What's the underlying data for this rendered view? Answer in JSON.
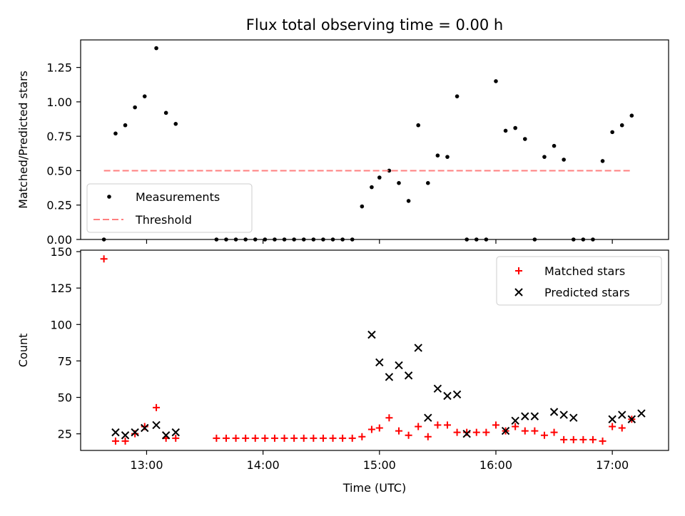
{
  "title": "Flux total observing time = 0.00 h",
  "chart_data": [
    {
      "type": "scatter",
      "ylabel": "Matched/Predicted stars",
      "ylim": [
        0,
        1.45
      ],
      "xlim": [
        "12:26",
        "17:29"
      ],
      "yticks": [
        0.0,
        0.25,
        0.5,
        0.75,
        1.0,
        1.25
      ],
      "ytick_labels": [
        "0.00",
        "0.25",
        "0.50",
        "0.75",
        "1.00",
        "1.25"
      ],
      "legend_position": "lower-left",
      "grid": false,
      "series": [
        {
          "name": "Measurements",
          "color": "#000000",
          "marker": "dot",
          "x": [
            "12:38",
            "12:44",
            "12:49",
            "12:54",
            "12:59",
            "13:05",
            "13:10",
            "13:15",
            "13:36",
            "13:41",
            "13:46",
            "13:51",
            "13:56",
            "14:01",
            "14:06",
            "14:11",
            "14:16",
            "14:21",
            "14:26",
            "14:31",
            "14:36",
            "14:41",
            "14:46",
            "14:51",
            "14:56",
            "15:00",
            "15:05",
            "15:10",
            "15:15",
            "15:20",
            "15:25",
            "15:30",
            "15:35",
            "15:40",
            "15:45",
            "15:50",
            "15:55",
            "16:00",
            "16:05",
            "16:10",
            "16:15",
            "16:20",
            "16:25",
            "16:30",
            "16:35",
            "16:40",
            "16:45",
            "16:50",
            "16:55",
            "17:00",
            "17:05",
            "17:10"
          ],
          "y": [
            0.0,
            0.77,
            0.83,
            0.96,
            1.04,
            1.39,
            0.92,
            0.84,
            0.0,
            0.0,
            0.0,
            0.0,
            0.0,
            0.0,
            0.0,
            0.0,
            0.0,
            0.0,
            0.0,
            0.0,
            0.0,
            0.0,
            0.0,
            0.24,
            0.38,
            0.45,
            0.5,
            0.41,
            0.28,
            0.83,
            0.41,
            0.61,
            0.6,
            1.04,
            0.0,
            0.0,
            0.0,
            1.15,
            0.79,
            0.81,
            0.73,
            0.0,
            0.6,
            0.68,
            0.58,
            0.0,
            0.0,
            0.0,
            0.57,
            0.78,
            0.83,
            0.9
          ]
        },
        {
          "name": "Threshold",
          "color": "#ff7f7f",
          "style": "dashed",
          "x": [
            "12:38",
            "17:10"
          ],
          "y": [
            0.5,
            0.5
          ]
        }
      ]
    },
    {
      "type": "scatter",
      "ylabel": "Count",
      "xlabel": "Time (UTC)",
      "ylim": [
        13.6,
        151
      ],
      "xlim": [
        "12:26",
        "17:29"
      ],
      "yticks": [
        25,
        50,
        75,
        100,
        125,
        150
      ],
      "ytick_labels": [
        "25",
        "50",
        "75",
        "100",
        "125",
        "150"
      ],
      "xticks": [
        "13:00",
        "14:00",
        "15:00",
        "16:00",
        "17:00"
      ],
      "legend_position": "upper-right",
      "grid": false,
      "series": [
        {
          "name": "Matched stars",
          "color": "#ff0000",
          "marker": "plus",
          "x": [
            "12:38",
            "12:44",
            "12:49",
            "12:54",
            "12:59",
            "13:05",
            "13:10",
            "13:15",
            "13:36",
            "13:41",
            "13:46",
            "13:51",
            "13:56",
            "14:01",
            "14:06",
            "14:11",
            "14:16",
            "14:21",
            "14:26",
            "14:31",
            "14:36",
            "14:41",
            "14:46",
            "14:51",
            "14:56",
            "15:00",
            "15:05",
            "15:10",
            "15:15",
            "15:20",
            "15:25",
            "15:30",
            "15:35",
            "15:40",
            "15:45",
            "15:50",
            "15:55",
            "16:00",
            "16:05",
            "16:10",
            "16:15",
            "16:20",
            "16:25",
            "16:30",
            "16:35",
            "16:40",
            "16:45",
            "16:50",
            "16:55",
            "17:00",
            "17:05",
            "17:10"
          ],
          "y": [
            145,
            20,
            20,
            25,
            30,
            43,
            22,
            22,
            22,
            22,
            22,
            22,
            22,
            22,
            22,
            22,
            22,
            22,
            22,
            22,
            22,
            22,
            22,
            23,
            28,
            29,
            36,
            27,
            24,
            30,
            23,
            31,
            31,
            26,
            26,
            26,
            26,
            31,
            27,
            30,
            27,
            27,
            24,
            26,
            21,
            21,
            21,
            21,
            20,
            30,
            29,
            35
          ]
        },
        {
          "name": "Predicted stars",
          "color": "#000000",
          "marker": "x",
          "x": [
            "12:44",
            "12:49",
            "12:54",
            "12:59",
            "13:05",
            "13:10",
            "13:15",
            "14:56",
            "15:00",
            "15:05",
            "15:10",
            "15:15",
            "15:20",
            "15:25",
            "15:30",
            "15:35",
            "15:40",
            "15:45",
            "16:05",
            "16:10",
            "16:15",
            "16:20",
            "16:30",
            "16:35",
            "16:40",
            "17:00",
            "17:05",
            "17:10",
            "17:15"
          ],
          "y": [
            26,
            24,
            26,
            29,
            31,
            24,
            26,
            93,
            74,
            64,
            72,
            65,
            84,
            36,
            56,
            51,
            52,
            25,
            27,
            34,
            37,
            37,
            40,
            38,
            36,
            35,
            38,
            35,
            39
          ]
        }
      ]
    }
  ]
}
